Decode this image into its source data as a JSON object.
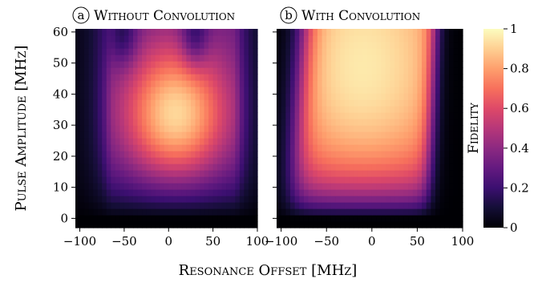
{
  "chart_data": [
    {
      "type": "heatmap",
      "panel_label": "a",
      "title": "Without Convolution",
      "xlabel": "Resonance Offset [MHz]",
      "ylabel": "Pulse Amplitude [MHz]",
      "xlim": [
        -105,
        100
      ],
      "ylim": [
        -3,
        61
      ],
      "x_ticks": [
        -100,
        -50,
        0,
        50,
        100
      ],
      "y_ticks": [
        0,
        10,
        20,
        30,
        40,
        50,
        60
      ],
      "x_tick_labels": [
        "−100",
        "−50",
        "0",
        "50",
        "100"
      ],
      "y_tick_labels": [
        "0",
        "10",
        "20",
        "30",
        "40",
        "50",
        "60"
      ],
      "grid": "41x31",
      "value_range": [
        0,
        1
      ],
      "description_of_values": "fidelity as function of resonance offset and pulse amplitude",
      "features": {
        "max_fidelity": 0.98,
        "max_location": [
          10,
          33
        ],
        "dark_lobes_at_top": [
          [
            -52,
            60
          ],
          [
            30,
            60
          ]
        ]
      }
    },
    {
      "type": "heatmap",
      "panel_label": "b",
      "title": "With Convolution",
      "xlabel": "Resonance Offset [MHz]",
      "xlim": [
        -105,
        100
      ],
      "ylim": [
        -3,
        61
      ],
      "x_ticks": [
        -100,
        -50,
        0,
        50,
        100
      ],
      "y_ticks": [
        0,
        10,
        20,
        30,
        40,
        50,
        60
      ],
      "x_tick_labels": [
        "−100",
        "−50",
        "0",
        "50",
        "100"
      ],
      "grid": "41x31",
      "value_range": [
        0,
        1
      ],
      "features": {
        "max_fidelity": 0.97,
        "high_fidelity_band_x": [
          -75,
          50
        ],
        "dark_diagonal_left_edge": true
      }
    }
  ],
  "colorbar": {
    "label": "Fidelity",
    "colormap": "magma",
    "ticks": [
      0,
      0.2,
      0.4,
      0.6,
      0.8,
      1
    ],
    "tick_labels": [
      "0",
      "0.2",
      "0.4",
      "0.6",
      "0.8",
      "1"
    ]
  }
}
